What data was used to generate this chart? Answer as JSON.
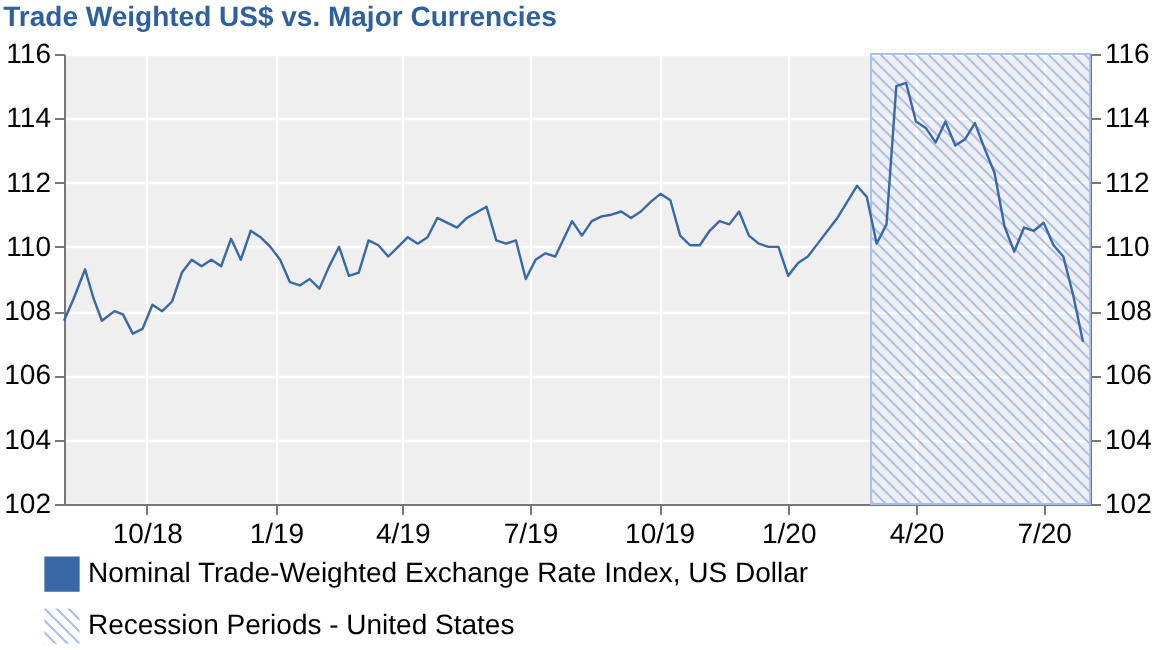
{
  "chart_data": {
    "type": "line",
    "title": "Trade Weighted US$ vs. Major Currencies",
    "x": [
      "2018-08-03",
      "2018-08-10",
      "2018-08-18",
      "2018-08-24",
      "2018-08-30",
      "2018-09-08",
      "2018-09-14",
      "2018-09-21",
      "2018-09-28",
      "2018-10-05",
      "2018-10-12",
      "2018-10-19",
      "2018-10-26",
      "2018-11-02",
      "2018-11-09",
      "2018-11-16",
      "2018-11-23",
      "2018-11-30",
      "2018-12-07",
      "2018-12-14",
      "2018-12-21",
      "2018-12-28",
      "2019-01-04",
      "2019-01-11",
      "2019-01-18",
      "2019-01-25",
      "2019-02-01",
      "2019-02-08",
      "2019-02-15",
      "2019-02-22",
      "2019-03-01",
      "2019-03-08",
      "2019-03-15",
      "2019-03-22",
      "2019-03-29",
      "2019-04-05",
      "2019-04-12",
      "2019-04-19",
      "2019-04-26",
      "2019-05-10",
      "2019-05-17",
      "2019-05-31",
      "2019-06-07",
      "2019-06-14",
      "2019-06-21",
      "2019-06-28",
      "2019-07-05",
      "2019-07-12",
      "2019-07-19",
      "2019-07-31",
      "2019-08-07",
      "2019-08-14",
      "2019-08-21",
      "2019-08-28",
      "2019-09-04",
      "2019-09-11",
      "2019-09-18",
      "2019-09-25",
      "2019-10-02",
      "2019-10-09",
      "2019-10-16",
      "2019-10-23",
      "2019-10-30",
      "2019-11-06",
      "2019-11-13",
      "2019-11-20",
      "2019-11-27",
      "2019-12-04",
      "2019-12-11",
      "2019-12-18",
      "2019-12-25",
      "2020-01-01",
      "2020-01-08",
      "2020-01-15",
      "2020-01-22",
      "2020-01-29",
      "2020-02-05",
      "2020-02-12",
      "2020-02-19",
      "2020-02-26",
      "2020-03-04",
      "2020-03-11",
      "2020-03-18",
      "2020-03-25",
      "2020-04-01",
      "2020-04-08",
      "2020-04-15",
      "2020-04-22",
      "2020-04-29",
      "2020-05-06",
      "2020-05-13",
      "2020-05-20",
      "2020-05-27",
      "2020-06-03",
      "2020-06-10",
      "2020-06-17",
      "2020-06-24",
      "2020-07-01",
      "2020-07-08",
      "2020-07-15",
      "2020-07-22",
      "2020-07-29"
    ],
    "series": [
      {
        "name": "Nominal Trade-Weighted Exchange Rate Index, US Dollar",
        "color": "#3a67a6",
        "values": [
          107.7,
          108.4,
          109.3,
          108.4,
          107.7,
          108.0,
          107.9,
          107.3,
          107.45,
          108.2,
          108.0,
          108.3,
          109.2,
          109.6,
          109.4,
          109.6,
          109.4,
          110.25,
          109.6,
          110.5,
          110.3,
          110.0,
          109.6,
          108.9,
          108.8,
          109.0,
          108.7,
          109.4,
          110.0,
          109.1,
          109.2,
          110.2,
          110.05,
          109.7,
          110.0,
          110.3,
          110.1,
          110.3,
          110.9,
          110.6,
          110.9,
          111.25,
          110.2,
          110.1,
          110.2,
          109.0,
          109.6,
          109.8,
          109.7,
          110.8,
          110.35,
          110.8,
          110.95,
          111.0,
          111.1,
          110.9,
          111.1,
          111.4,
          111.65,
          111.45,
          110.35,
          110.05,
          110.05,
          110.5,
          110.8,
          110.7,
          111.1,
          110.35,
          110.1,
          110.0,
          110.0,
          109.1,
          109.5,
          109.7,
          110.1,
          110.5,
          110.9,
          111.4,
          111.9,
          111.55,
          110.1,
          110.7,
          115.0,
          115.1,
          113.9,
          113.7,
          113.25,
          113.9,
          113.15,
          113.35,
          113.85,
          113.05,
          112.3,
          110.65,
          109.85,
          110.6,
          110.5,
          110.75,
          110.05,
          109.7,
          108.5,
          107.05
        ]
      }
    ],
    "xlim": [
      "2018-08-03",
      "2020-08-03"
    ],
    "xticks": [
      {
        "value": "2018-10-01",
        "label": "10/18"
      },
      {
        "value": "2019-01-01",
        "label": "1/19"
      },
      {
        "value": "2019-04-01",
        "label": "4/19"
      },
      {
        "value": "2019-07-01",
        "label": "7/19"
      },
      {
        "value": "2019-10-01",
        "label": "10/19"
      },
      {
        "value": "2020-01-01",
        "label": "1/20"
      },
      {
        "value": "2020-04-01",
        "label": "4/20"
      },
      {
        "value": "2020-07-01",
        "label": "7/20"
      }
    ],
    "ylim": [
      102,
      116
    ],
    "yticks": [
      102,
      104,
      106,
      108,
      110,
      112,
      114,
      116
    ],
    "y2lim": [
      102,
      116
    ],
    "y2ticks": [
      102,
      104,
      106,
      108,
      110,
      112,
      114,
      116
    ],
    "bands": [
      {
        "axis": "x",
        "from": "2020-02-29",
        "to": "2020-08-03",
        "label": "Recession Periods - United States",
        "color": "#a9bff0"
      }
    ],
    "grid": true,
    "legend": "bottom",
    "marker": "none",
    "line_style": "solid"
  }
}
